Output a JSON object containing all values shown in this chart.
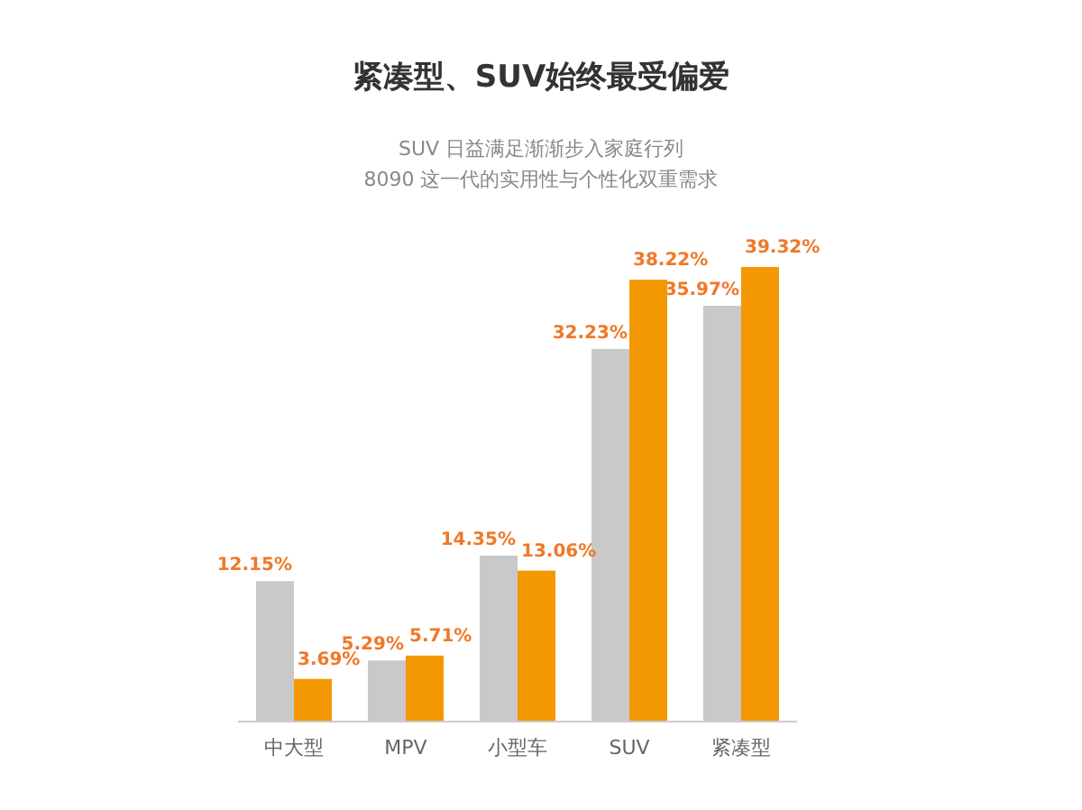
{
  "chart_data": {
    "type": "bar",
    "title": "紧凑型、SUV始终最受偏爱",
    "subtitle": "SUV 日益满足渐渐步入家庭行列\n8090 这一代的实用性与个性化双重需求",
    "categories": [
      "中大型",
      "MPV",
      "小型车",
      "SUV",
      "紧凑型"
    ],
    "series": [
      {
        "color": "#c9c9c9",
        "values": [
          12.15,
          5.29,
          14.35,
          32.23,
          35.97
        ],
        "value_labels": [
          "12.15%",
          "5.29%",
          "14.35%",
          "32.23%",
          "35.97%"
        ]
      },
      {
        "color": "#f39800",
        "values": [
          3.69,
          5.71,
          13.06,
          38.22,
          39.32
        ],
        "value_labels": [
          "3.69%",
          "5.71%",
          "13.06%",
          "38.22%",
          "39.32%"
        ]
      }
    ],
    "tick_labels": "x"
  }
}
